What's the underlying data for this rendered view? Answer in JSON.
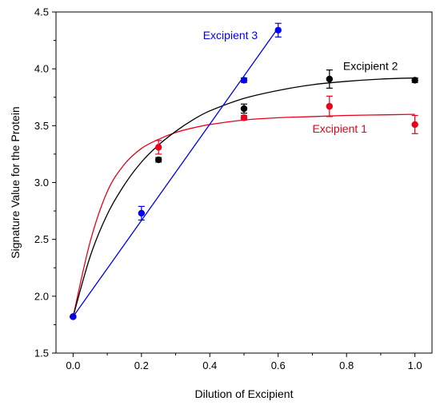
{
  "chart_data": {
    "type": "scatter",
    "xlabel": "Dilution of Excipient",
    "ylabel": "Signature Value for the Protein",
    "xlim": [
      -0.05,
      1.05
    ],
    "ylim": [
      1.5,
      4.5
    ],
    "xticks": [
      "0.0",
      "0.2",
      "0.4",
      "0.6",
      "0.8",
      "1.0"
    ],
    "xtick_values": [
      0,
      0.2,
      0.4,
      0.6,
      0.8,
      1.0
    ],
    "yticks": [
      "1.5",
      "2.0",
      "2.5",
      "3.0",
      "3.5",
      "4.0",
      "4.5"
    ],
    "ytick_values": [
      1.5,
      2.0,
      2.5,
      3.0,
      3.5,
      4.0,
      4.5
    ],
    "grid": false,
    "series": [
      {
        "name": "Excipient 1",
        "color": "#e8001c",
        "fit": "saturating",
        "points": [
          {
            "x": 0.0,
            "y": 1.82,
            "err": 0
          },
          {
            "x": 0.25,
            "y": 3.31,
            "err": 0.06
          },
          {
            "x": 0.5,
            "y": 3.57,
            "err": 0.02
          },
          {
            "x": 0.75,
            "y": 3.67,
            "err": 0.09
          },
          {
            "x": 1.0,
            "y": 3.51,
            "err": 0.08
          }
        ],
        "fit_curve": {
          "x": [
            0,
            0.05,
            0.1,
            0.15,
            0.2,
            0.25,
            0.3,
            0.35,
            0.4,
            0.5,
            0.6,
            0.7,
            0.8,
            0.9,
            1.0
          ],
          "y": [
            1.82,
            2.48,
            2.92,
            3.16,
            3.3,
            3.38,
            3.44,
            3.48,
            3.51,
            3.55,
            3.57,
            3.58,
            3.59,
            3.595,
            3.6
          ]
        },
        "label_position": "below-right"
      },
      {
        "name": "Excipient 2",
        "color": "#000000",
        "fit": "saturating",
        "points": [
          {
            "x": 0.0,
            "y": 1.82,
            "err": 0
          },
          {
            "x": 0.25,
            "y": 3.2,
            "err": 0.02
          },
          {
            "x": 0.5,
            "y": 3.65,
            "err": 0.04
          },
          {
            "x": 0.75,
            "y": 3.91,
            "err": 0.08
          },
          {
            "x": 1.0,
            "y": 3.9,
            "err": 0.02
          }
        ],
        "fit_curve": {
          "x": [
            0,
            0.05,
            0.1,
            0.15,
            0.2,
            0.25,
            0.3,
            0.35,
            0.4,
            0.5,
            0.6,
            0.7,
            0.8,
            0.9,
            1.0
          ],
          "y": [
            1.82,
            2.35,
            2.72,
            2.98,
            3.18,
            3.33,
            3.45,
            3.55,
            3.63,
            3.74,
            3.81,
            3.86,
            3.89,
            3.91,
            3.92
          ]
        },
        "label_position": "above"
      },
      {
        "name": "Excipient 3",
        "color": "#0000f0",
        "fit": "linear",
        "points": [
          {
            "x": 0.0,
            "y": 1.82,
            "err": 0
          },
          {
            "x": 0.2,
            "y": 2.73,
            "err": 0.06
          },
          {
            "x": 0.5,
            "y": 3.9,
            "err": 0.02
          },
          {
            "x": 0.6,
            "y": 4.34,
            "err": 0.06
          }
        ],
        "fit_curve": {
          "x": [
            0,
            0.6
          ],
          "y": [
            1.82,
            4.36
          ]
        },
        "label_position": "left"
      }
    ]
  }
}
